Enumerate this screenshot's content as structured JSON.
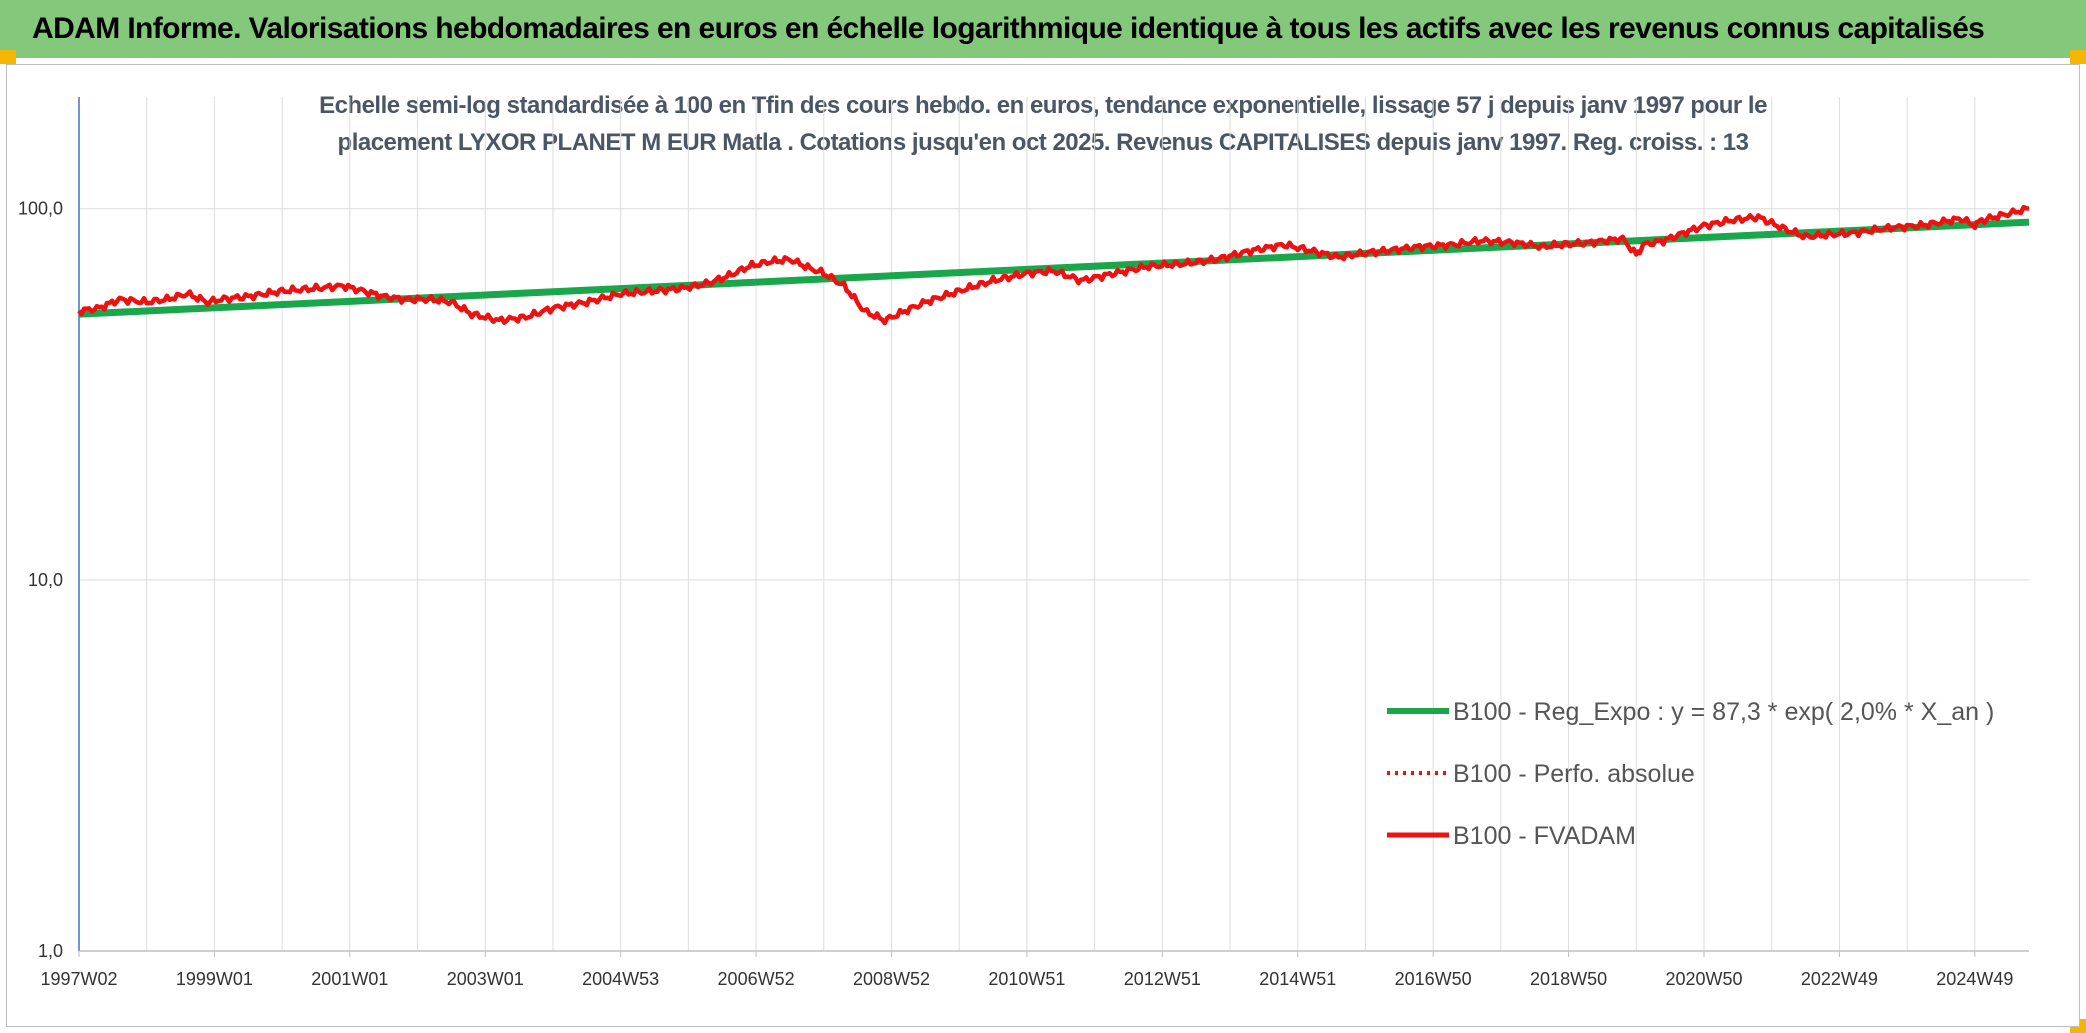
{
  "header": {
    "title": "ADAM Informe. Valorisations hebdomadaires en euros en échelle logarithmique identique à tous les actifs avec les revenus connus capitalisés"
  },
  "colors": {
    "header_bg": "#84c97b",
    "accent_corner": "#f2b705",
    "trend_line": "#1aa64a",
    "price_line": "#ee1111",
    "grid": "#dddddd"
  },
  "chart_data": {
    "type": "line",
    "title_lines": [
      "Echelle semi-log standardisée à 100 en Tfin des cours hebdo. en euros, tendance exponentielle, lissage 57 j depuis janv 1997 pour le",
      "placement LYXOR PLANET M EUR Matla . Cotations jusqu'en oct 2025. Revenus CAPITALISES depuis janv 1997. Reg. croiss. : 13"
    ],
    "yscale": "log",
    "ylim": [
      1,
      200
    ],
    "xlim": [
      1997.0,
      2025.8
    ],
    "y_ticks": [
      {
        "value": 1,
        "label": "1,0"
      },
      {
        "value": 10,
        "label": "10,0"
      },
      {
        "value": 100,
        "label": "100,0"
      }
    ],
    "x_ticks": [
      {
        "x": 1997.0,
        "label": "1997W02"
      },
      {
        "x": 1999.0,
        "label": "1999W01"
      },
      {
        "x": 2001.0,
        "label": "2001W01"
      },
      {
        "x": 2003.0,
        "label": "2003W01"
      },
      {
        "x": 2005.0,
        "label": "2004W53"
      },
      {
        "x": 2007.0,
        "label": "2006W52"
      },
      {
        "x": 2009.0,
        "label": "2008W52"
      },
      {
        "x": 2011.0,
        "label": "2010W51"
      },
      {
        "x": 2013.0,
        "label": "2012W51"
      },
      {
        "x": 2015.0,
        "label": "2014W51"
      },
      {
        "x": 2017.0,
        "label": "2016W50"
      },
      {
        "x": 2019.0,
        "label": "2018W50"
      },
      {
        "x": 2021.0,
        "label": "2020W50"
      },
      {
        "x": 2023.0,
        "label": "2022W49"
      },
      {
        "x": 2025.0,
        "label": "2024W49"
      }
    ],
    "grid": true,
    "legend_position": "lower-right",
    "series": [
      {
        "name": "B100 - Reg_Expo : y = 87,3 * exp( 2,0% *  X_an )",
        "style": "solid-thick",
        "color": "#1aa64a",
        "x": [
          1997.0,
          2025.8
        ],
        "y": [
          52,
          92
        ]
      },
      {
        "name": "B100 - Perfo. absolue",
        "style": "dotted",
        "color": "#ee1111",
        "x": [],
        "y": []
      },
      {
        "name": "B100 - FVADAM",
        "style": "solid",
        "color": "#ee1111",
        "x": [
          1997.0,
          1997.3,
          1997.6,
          1998.0,
          1998.3,
          1998.6,
          1998.9,
          1999.1,
          1999.5,
          2000.0,
          2000.5,
          2000.9,
          2001.2,
          2001.5,
          2001.8,
          2002.2,
          2002.5,
          2002.8,
          2003.2,
          2003.6,
          2004.0,
          2004.5,
          2005.0,
          2005.5,
          2005.9,
          2006.3,
          2006.6,
          2006.9,
          2007.2,
          2007.5,
          2007.8,
          2008.0,
          2008.3,
          2008.6,
          2008.9,
          2009.2,
          2009.5,
          2010.0,
          2010.5,
          2011.0,
          2011.4,
          2011.8,
          2012.3,
          2012.8,
          2013.3,
          2013.8,
          2014.3,
          2014.8,
          2015.2,
          2015.6,
          2016.0,
          2016.3,
          2016.8,
          2017.3,
          2017.7,
          2018.2,
          2018.6,
          2018.9,
          2019.3,
          2019.8,
          2020.0,
          2020.1,
          2020.4,
          2020.7,
          2021.0,
          2021.4,
          2021.8,
          2022.2,
          2022.5,
          2022.8,
          2023.2,
          2023.6,
          2023.8,
          2024.2,
          2024.5,
          2024.8,
          2025.0,
          2025.1,
          2025.3,
          2025.6,
          2025.8
        ],
        "y": [
          53,
          54,
          57,
          56,
          57,
          59,
          56,
          57,
          58,
          60,
          61,
          62,
          60,
          58,
          57,
          57,
          56,
          52,
          50,
          51,
          54,
          56,
          59,
          60,
          61,
          63,
          66,
          70,
          72,
          73,
          69,
          67,
          62,
          53,
          50,
          53,
          56,
          60,
          64,
          67,
          68,
          64,
          67,
          70,
          71,
          73,
          77,
          80,
          77,
          74,
          76,
          77,
          79,
          80,
          82,
          81,
          79,
          80,
          81,
          83,
          75,
          80,
          82,
          86,
          90,
          93,
          95,
          88,
          84,
          85,
          86,
          88,
          89,
          90,
          92,
          94,
          90,
          93,
          95,
          98,
          100
        ]
      }
    ]
  }
}
